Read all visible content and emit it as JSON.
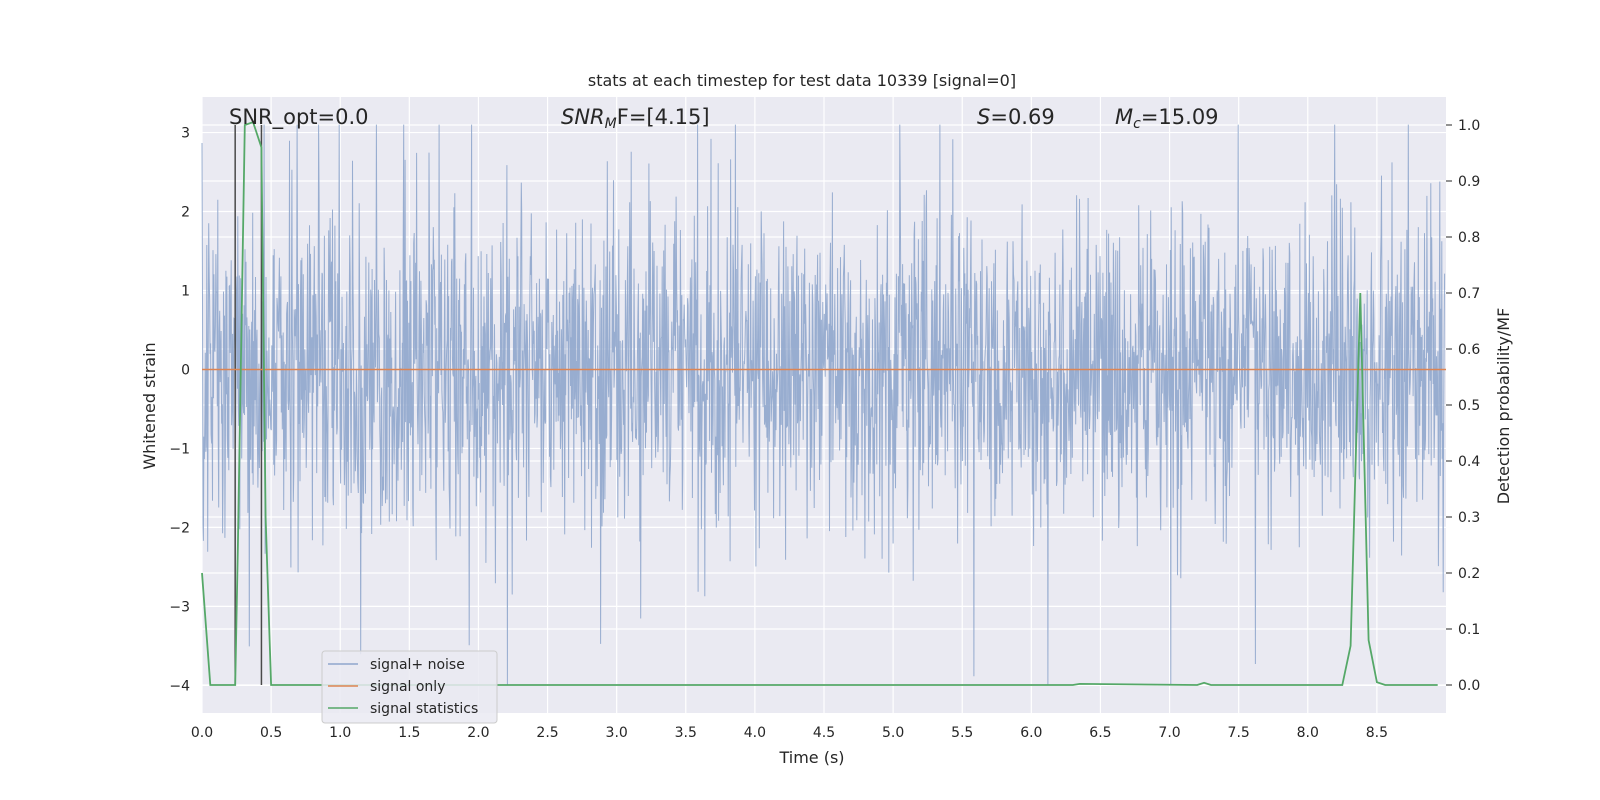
{
  "chart_data": {
    "type": "line",
    "title": "stats at each timestep for test data 10339 [signal=0]",
    "xlabel": "Time (s)",
    "ylabel": "Whitened strain",
    "y2label": "Detection probability/MF",
    "xlim": [
      0.0,
      9.0
    ],
    "ylim": [
      -4.35,
      3.45
    ],
    "y2lim": [
      -0.05,
      1.05
    ],
    "xticks": [
      "0.0",
      "0.5",
      "1.0",
      "1.5",
      "2.0",
      "2.5",
      "3.0",
      "3.5",
      "4.0",
      "4.5",
      "5.0",
      "5.5",
      "6.0",
      "6.5",
      "7.0",
      "7.5",
      "8.0",
      "8.5"
    ],
    "yticks": [
      "−4",
      "−3",
      "−2",
      "−1",
      "0",
      "1",
      "2",
      "3"
    ],
    "y2ticks": [
      "0.0",
      "0.1",
      "0.2",
      "0.3",
      "0.4",
      "0.5",
      "0.6",
      "0.7",
      "0.8",
      "0.9",
      "1.0"
    ],
    "grid": true,
    "legend_placement": "lower-left",
    "annotations": {
      "snr_opt": "SNR_opt=0.0",
      "snr_mf_sym": "SNR",
      "snr_mf_sub": "M",
      "snr_mf_rest": "F=[4.15]",
      "s_sym": "S",
      "s_rest": "=0.69",
      "mc_sym": "M",
      "mc_sub": "c",
      "mc_rest": "=15.09"
    },
    "vertical_lines_x": [
      0.24,
      0.43
    ],
    "series": [
      {
        "name": "signal+ noise",
        "color": "#8fa6cc",
        "noise_envelope": {
          "typical_amplitude": 1.3,
          "max": 3.1,
          "min": -4.0
        }
      },
      {
        "name": "signal only",
        "color": "#dd8452",
        "x": [
          0.0,
          9.0
        ],
        "y": [
          0.0,
          0.0
        ]
      },
      {
        "name": "signal statistics",
        "color": "#55a868",
        "axis": "right",
        "x": [
          0.0,
          0.06,
          0.24,
          0.26,
          0.31,
          0.37,
          0.43,
          0.46,
          0.5,
          6.3,
          6.35,
          7.2,
          7.25,
          7.3,
          8.25,
          8.31,
          8.38,
          8.44,
          8.5,
          8.56,
          8.94
        ],
        "y": [
          0.2,
          0.0,
          0.0,
          0.25,
          1.0,
          1.005,
          0.96,
          0.3,
          0.0,
          0.0,
          0.002,
          0.0,
          0.004,
          0.0,
          0.0,
          0.07,
          0.7,
          0.08,
          0.005,
          0.0,
          0.0
        ]
      }
    ]
  }
}
